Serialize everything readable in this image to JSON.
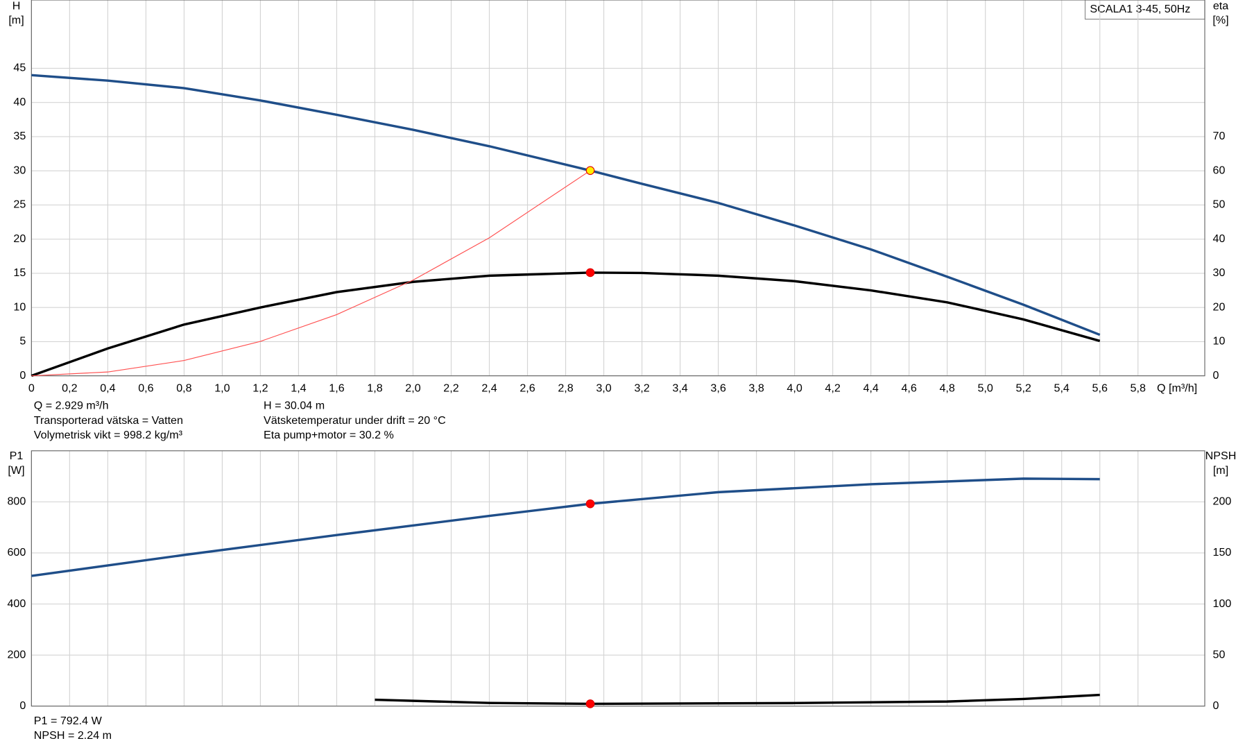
{
  "legend_label": "SCALA1 3-45, 50Hz",
  "chart_data": [
    {
      "type": "line",
      "y_label": "H",
      "y_unit": "[m]",
      "y2_label": "eta",
      "y2_unit": "[%]",
      "x_label": "Q [m³/h]",
      "xlim": [
        0,
        6.15
      ],
      "xticks": [
        0,
        {
          "value": 0.2,
          "label": "0,2"
        },
        {
          "value": 0.4,
          "label": "0,4"
        },
        {
          "value": 0.6,
          "label": "0,6"
        },
        {
          "value": 0.8,
          "label": "0,8"
        },
        {
          "value": 1.0,
          "label": "1,0"
        },
        {
          "value": 1.2,
          "label": "1,2"
        },
        {
          "value": 1.4,
          "label": "1,4"
        },
        {
          "value": 1.6,
          "label": "1,6"
        },
        {
          "value": 1.8,
          "label": "1,8"
        },
        {
          "value": 2.0,
          "label": "2,0"
        },
        {
          "value": 2.2,
          "label": "2,2"
        },
        {
          "value": 2.4,
          "label": "2,4"
        },
        {
          "value": 2.6,
          "label": "2,6"
        },
        {
          "value": 2.8,
          "label": "2,8"
        },
        {
          "value": 3.0,
          "label": "3,0"
        },
        {
          "value": 3.2,
          "label": "3,2"
        },
        {
          "value": 3.4,
          "label": "3,4"
        },
        {
          "value": 3.6,
          "label": "3,6"
        },
        {
          "value": 3.8,
          "label": "3,8"
        },
        {
          "value": 4.0,
          "label": "4,0"
        },
        {
          "value": 4.2,
          "label": "4,2"
        },
        {
          "value": 4.4,
          "label": "4,4"
        },
        {
          "value": 4.6,
          "label": "4,6"
        },
        {
          "value": 4.8,
          "label": "4,8"
        },
        {
          "value": 5.0,
          "label": "5,0"
        },
        {
          "value": 5.2,
          "label": "5,2"
        },
        {
          "value": 5.4,
          "label": "5,4"
        },
        {
          "value": 5.6,
          "label": "5,6"
        },
        {
          "value": 5.8,
          "label": "5,8"
        }
      ],
      "ylim": [
        0,
        55
      ],
      "yticks": [
        0,
        5,
        10,
        15,
        20,
        25,
        30,
        35,
        40,
        45
      ],
      "y2lim": [
        0,
        110
      ],
      "y2ticks": [
        0,
        10,
        20,
        30,
        40,
        50,
        60,
        70
      ],
      "grid": true,
      "operating_q": 2.929,
      "series": [
        {
          "color": "#1f4e89",
          "width": 3,
          "marker_color": "#ffee00",
          "x": [
            0,
            0.4,
            0.8,
            1.2,
            1.6,
            2.0,
            2.4,
            2.929,
            3.2,
            3.6,
            4.0,
            4.4,
            4.8,
            5.2,
            5.6
          ],
          "values": [
            44,
            43.2,
            42.1,
            40.3,
            38.2,
            36,
            33.6,
            30.04,
            28.1,
            25.3,
            22,
            18.5,
            14.5,
            10.4,
            6
          ]
        },
        {
          "color": "#000000",
          "width": 3,
          "axis": "y2",
          "marker_color": "#ff0000",
          "x": [
            0,
            0.4,
            0.8,
            1.2,
            1.6,
            2.0,
            2.4,
            2.929,
            3.2,
            3.6,
            4.0,
            4.4,
            4.8,
            5.2,
            5.6
          ],
          "values": [
            0,
            8,
            15,
            20,
            24.5,
            27.5,
            29.3,
            30.2,
            30.1,
            29.3,
            27.7,
            25,
            21.5,
            16.5,
            10.2
          ]
        },
        {
          "color": "#ff5050",
          "width": 1,
          "x": [
            0,
            0.4,
            0.8,
            1.2,
            1.6,
            2.0,
            2.4,
            2.929
          ],
          "values": [
            0,
            0.56,
            2.24,
            5.04,
            8.96,
            14.0,
            20.2,
            30.04
          ]
        }
      ],
      "info": [
        [
          "Q = 2.929 m³/h",
          "Transporterad vätska = Vatten",
          "Volymetrisk vikt = 998.2 kg/m³"
        ],
        [
          "H = 30.04 m",
          "Vätsketemperatur under drift = 20 °C",
          "Eta pump+motor = 30.2 %"
        ]
      ]
    },
    {
      "type": "line",
      "y_label": "P1",
      "y_unit": "[W]",
      "y2_label": "NPSH",
      "y2_unit": "[m]",
      "xlim": [
        0,
        6.15
      ],
      "ylim": [
        0,
        1000
      ],
      "yticks": [
        0,
        200,
        400,
        600,
        800
      ],
      "y2lim": [
        0,
        250
      ],
      "y2ticks": [
        0,
        50,
        100,
        150,
        200
      ],
      "grid": true,
      "operating_q": 2.929,
      "series": [
        {
          "color": "#1f4e89",
          "width": 3,
          "marker_color": "#ff0000",
          "x": [
            0,
            0.8,
            1.6,
            2.4,
            2.929,
            3.6,
            4.4,
            5.2,
            5.6
          ],
          "values": [
            510,
            592,
            670,
            745,
            792.4,
            838,
            869,
            891,
            889
          ]
        },
        {
          "color": "#000000",
          "width": 3,
          "axis": "y2",
          "marker_color": "#ff0000",
          "x": [
            1.8,
            2.4,
            2.929,
            4.0,
            4.8,
            5.2,
            5.6
          ],
          "values": [
            6.25,
            3.1,
            2.24,
            3,
            4.5,
            7,
            11
          ]
        }
      ],
      "info": [
        [
          "P1 = 792.4 W",
          "NPSH = 2.24 m"
        ]
      ]
    }
  ]
}
